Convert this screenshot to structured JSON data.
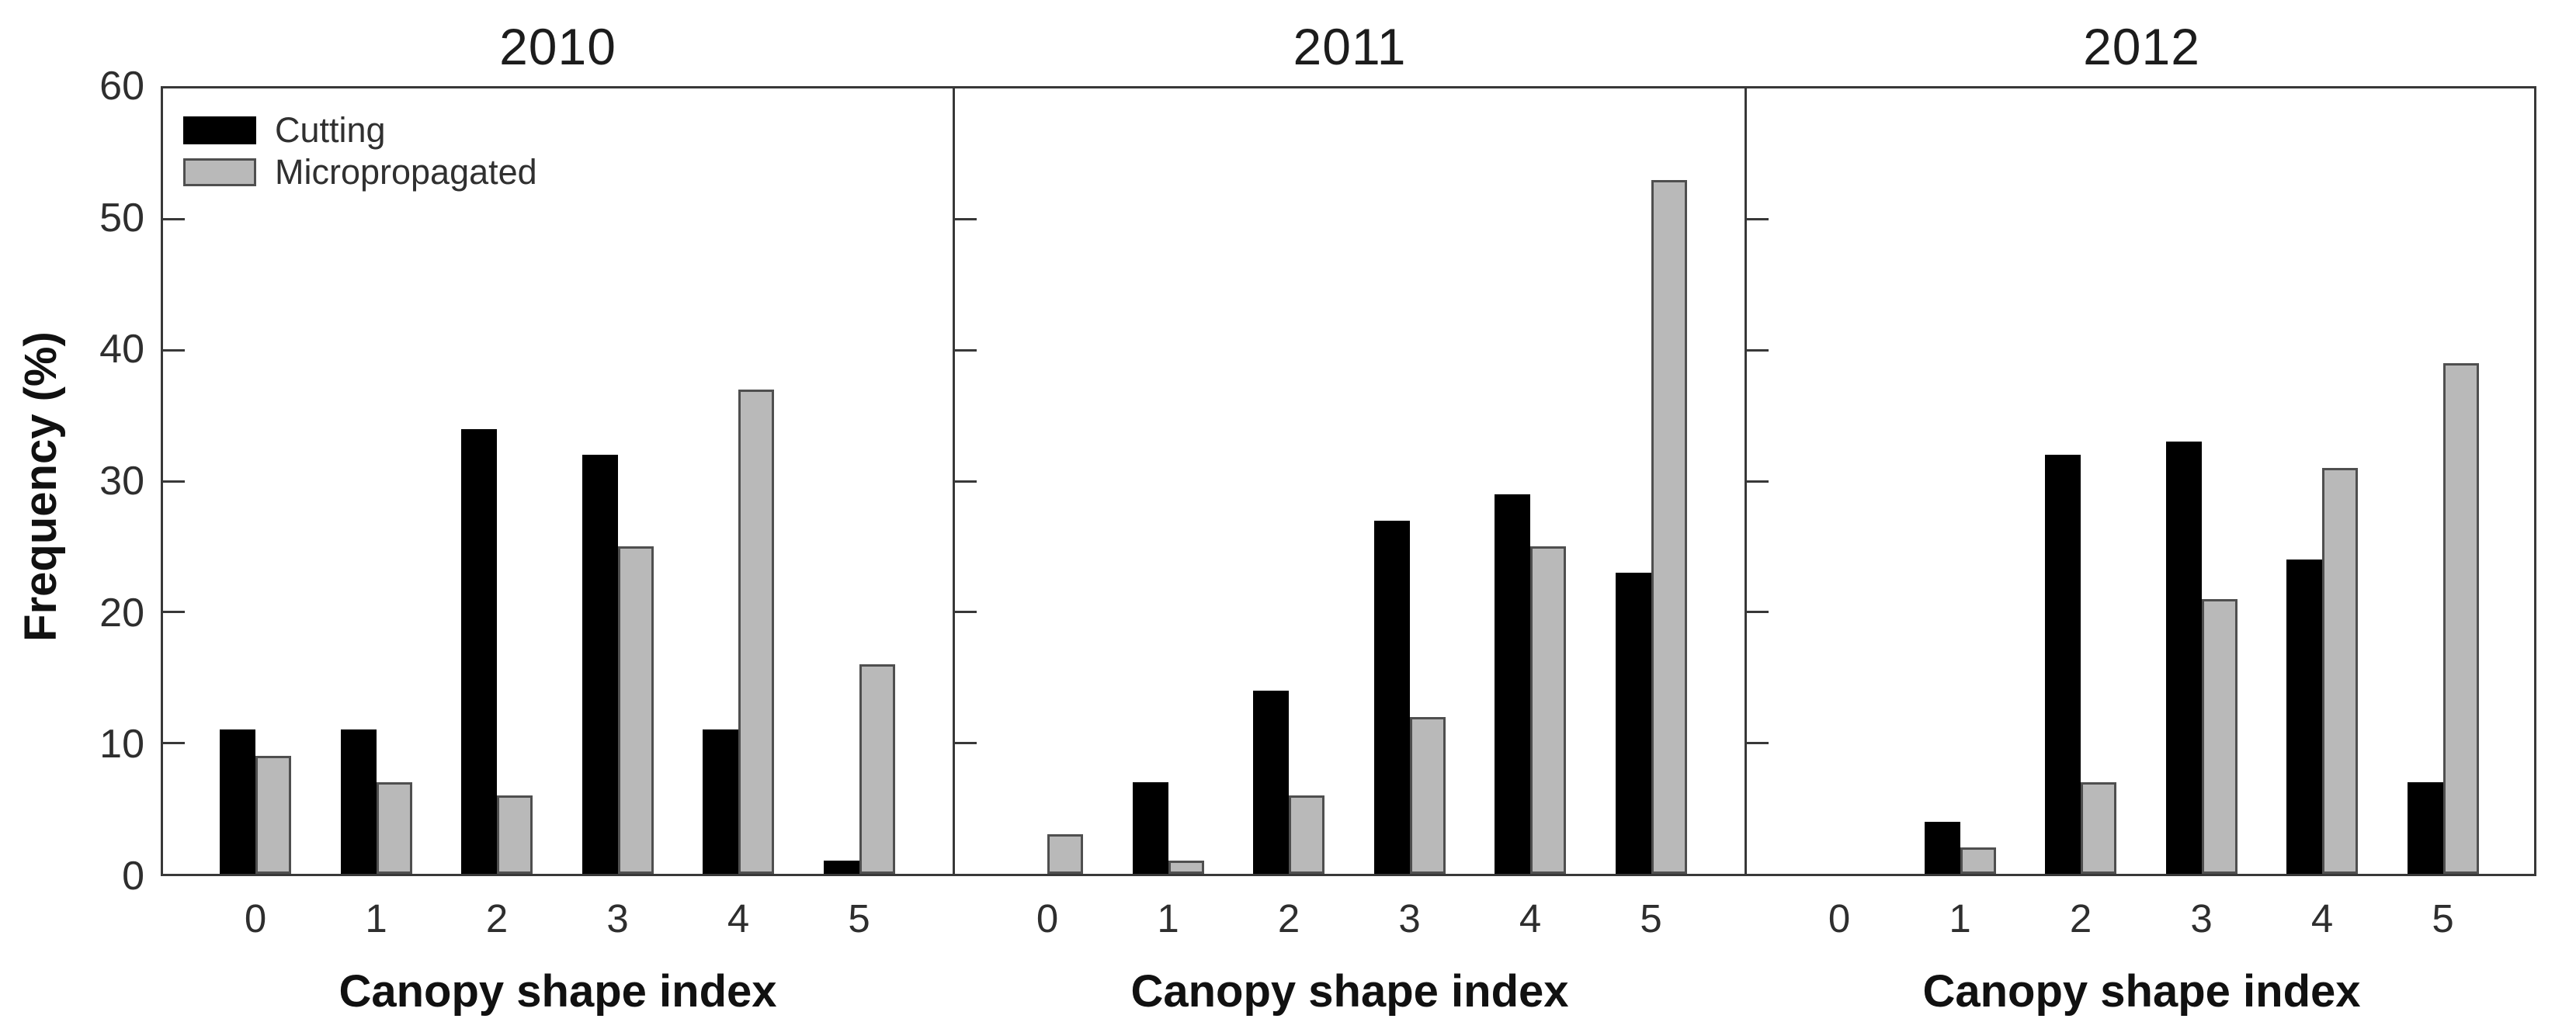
{
  "chart_data": {
    "type": "bar",
    "title": "",
    "y_axis_label": "Frequency (%)",
    "x_axis_label": "Canopy shape index",
    "ylim": [
      0,
      60
    ],
    "y_ticks": [
      0,
      10,
      20,
      30,
      40,
      50,
      60
    ],
    "categories": [
      "0",
      "1",
      "2",
      "3",
      "4",
      "5"
    ],
    "grid": "off",
    "legend": {
      "position": "top-left-of-first-panel",
      "entries": [
        {
          "label": "Cutting",
          "color": "#000000"
        },
        {
          "label": "Micropropagated",
          "color": "#b9b9b9"
        }
      ]
    },
    "panels": [
      {
        "title": "2010",
        "series": [
          {
            "name": "Cutting",
            "values": [
              11,
              11,
              34,
              32,
              11,
              1
            ]
          },
          {
            "name": "Micropropagated",
            "values": [
              9,
              7,
              6,
              25,
              37,
              16
            ]
          }
        ]
      },
      {
        "title": "2011",
        "series": [
          {
            "name": "Cutting",
            "values": [
              0,
              7,
              14,
              27,
              29,
              23
            ]
          },
          {
            "name": "Micropropagated",
            "values": [
              3,
              1,
              6,
              12,
              25,
              53
            ]
          }
        ]
      },
      {
        "title": "2012",
        "series": [
          {
            "name": "Cutting",
            "values": [
              0,
              4,
              32,
              33,
              24,
              7
            ]
          },
          {
            "name": "Micropropagated",
            "values": [
              0,
              2,
              7,
              21,
              31,
              39
            ]
          }
        ]
      }
    ],
    "colors": {
      "cutting_fill": "#000000",
      "micropropagated_fill": "#b9b9b9",
      "bar_edge": "#4f4f4f",
      "axis_line": "#383838",
      "text": "#2e2e2e"
    }
  }
}
